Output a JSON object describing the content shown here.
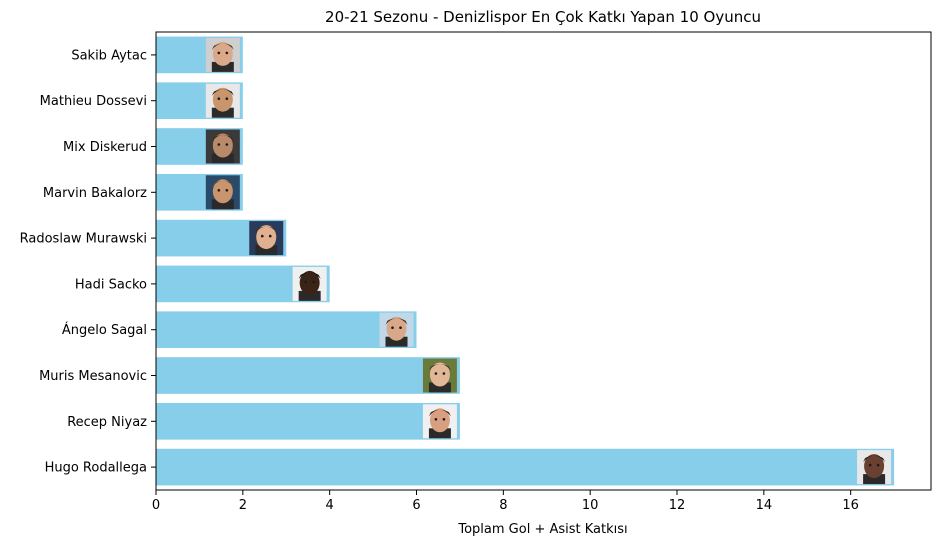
{
  "chart_data": {
    "type": "bar",
    "orientation": "horizontal",
    "title": "20-21 Sezonu - Denizlispor En Çok Katkı Yapan 10 Oyuncu",
    "xlabel": "Toplam Gol + Asist Katkısı",
    "ylabel": "",
    "xlim": [
      0,
      17.85
    ],
    "xticks": [
      0,
      2,
      4,
      6,
      8,
      10,
      12,
      14,
      16
    ],
    "grid": false,
    "bar_color": "#87ceeb",
    "categories": [
      "Sakib Aytac",
      "Mathieu Dossevi",
      "Mix Diskerud",
      "Marvin Bakalorz",
      "Radoslaw Murawski",
      "Hadi Sacko",
      "Ángelo Sagal",
      "Muris Mesanovic",
      "Recep Niyaz",
      "Hugo Rodallega"
    ],
    "values": [
      2,
      2,
      2,
      2,
      3,
      4,
      6,
      7,
      7,
      17
    ],
    "bar_images": [
      {
        "skin": "#d9a98a",
        "hair": "#5a3a22",
        "bg": "#cfcfcf"
      },
      {
        "skin": "#c8956c",
        "hair": "#2a1a10",
        "bg": "#e8e8e8"
      },
      {
        "skin": "#b88a6a",
        "hair": "#3a2a1a",
        "bg": "#3a3a3a"
      },
      {
        "skin": "#c9956e",
        "hair": "#6a4a2a",
        "bg": "#2a4a6a"
      },
      {
        "skin": "#e0b090",
        "hair": "#4a3020",
        "bg": "#2a3a5a"
      },
      {
        "skin": "#3a2418",
        "hair": "#0a0a0a",
        "bg": "#f0f0f0"
      },
      {
        "skin": "#d8a888",
        "hair": "#3a2818",
        "bg": "#c0d8e8"
      },
      {
        "skin": "#e0b898",
        "hair": "#4a3a20",
        "bg": "#6a7a3a"
      },
      {
        "skin": "#d8a080",
        "hair": "#2a1a10",
        "bg": "#f0f0f0"
      },
      {
        "skin": "#6a4030",
        "hair": "#1a1a1a",
        "bg": "#e8e8e8"
      }
    ]
  }
}
